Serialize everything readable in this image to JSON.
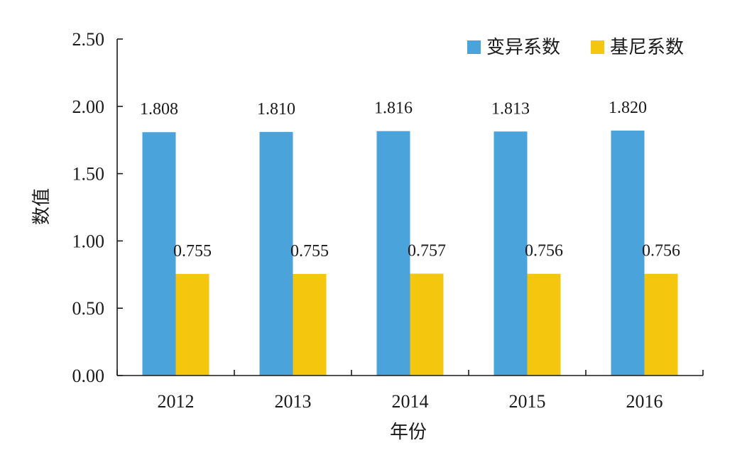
{
  "chart_data": {
    "type": "bar",
    "title": "",
    "xlabel": "年份",
    "ylabel": "数值",
    "categories": [
      "2012",
      "2013",
      "2014",
      "2015",
      "2016"
    ],
    "ylim": [
      0,
      2.5
    ],
    "yticks": [
      0,
      0.5,
      1.0,
      1.5,
      2.0,
      2.5
    ],
    "ytick_labels": [
      "0.00",
      "0.50",
      "1.00",
      "1.50",
      "2.00",
      "2.50"
    ],
    "grid": false,
    "legend_position": "top-right",
    "series": [
      {
        "name": "变异系数",
        "color": "#4ba3dc",
        "values": [
          1.808,
          1.81,
          1.816,
          1.813,
          1.82
        ],
        "labels": [
          "1.808",
          "1.810",
          "1.816",
          "1.813",
          "1.820"
        ]
      },
      {
        "name": "基尼系数",
        "color": "#f5c60e",
        "values": [
          0.755,
          0.755,
          0.757,
          0.756,
          0.756
        ],
        "labels": [
          "0.755",
          "0.755",
          "0.757",
          "0.756",
          "0.756"
        ]
      }
    ]
  }
}
